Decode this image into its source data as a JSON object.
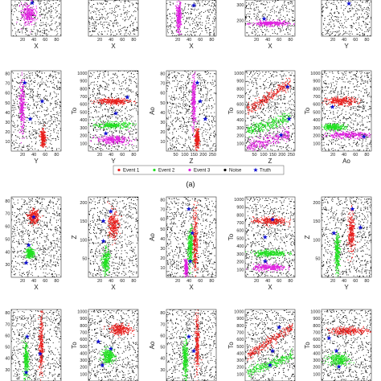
{
  "colors": {
    "event1": "#e8201e",
    "event2": "#20e020",
    "event3": "#e020e0",
    "noise": "#000000",
    "truth": "#1010d0"
  },
  "legend": {
    "items": [
      {
        "key": "event1",
        "label": "Event 1",
        "marker": "dot"
      },
      {
        "key": "event2",
        "label": "Event 2",
        "marker": "dot"
      },
      {
        "key": "event3",
        "label": "Event 3",
        "marker": "dot"
      },
      {
        "key": "noise",
        "label": "Noise",
        "marker": "dot"
      },
      {
        "key": "truth",
        "label": "Truth",
        "marker": "star"
      }
    ],
    "placement": "center"
  },
  "captions": [
    "(a)"
  ],
  "chart_data": [
    {
      "type": "scatter",
      "panel": "a-row1-1",
      "xlabel": "X",
      "ylabel": "",
      "xticks": [
        "20",
        "40",
        "60",
        "80"
      ],
      "yticks": [],
      "clusters": [
        {
          "series": "event3",
          "cx": 0.35,
          "cy": 0.6,
          "sx": 0.14,
          "sy": 0.28
        }
      ],
      "truth": [
        [
          0.42,
          0.92
        ]
      ]
    },
    {
      "type": "scatter",
      "panel": "a-row1-2",
      "xlabel": "X",
      "ylabel": "",
      "xticks": [
        "20",
        "40",
        "60",
        "80"
      ],
      "yticks": [],
      "clusters": [],
      "truth": []
    },
    {
      "type": "scatter",
      "panel": "a-row1-3",
      "xlabel": "X",
      "ylabel": "",
      "xticks": [
        "20",
        "40",
        "60",
        "80"
      ],
      "yticks": [],
      "clusters": [
        {
          "series": "event3",
          "cx": 0.25,
          "cy": 0.5,
          "sx": 0.05,
          "sy": 0.4
        }
      ],
      "truth": [
        [
          0.55,
          0.85
        ]
      ]
    },
    {
      "type": "scatter",
      "panel": "a-row1-4",
      "xlabel": "X",
      "ylabel": "",
      "xticks": [
        "20",
        "40",
        "60",
        "80"
      ],
      "yticks": [
        "200",
        "300"
      ],
      "clusters": [
        {
          "series": "event3",
          "cx": 0.5,
          "cy": 0.35,
          "sx": 0.35,
          "sy": 0.07
        }
      ],
      "truth": [
        [
          0.38,
          0.48
        ]
      ]
    },
    {
      "type": "scatter",
      "panel": "a-row1-5",
      "xlabel": "Y",
      "ylabel": "",
      "xticks": [
        "20",
        "40",
        "60",
        "80"
      ],
      "yticks": [],
      "clusters": [],
      "truth": [
        [
          0.55,
          0.9
        ]
      ]
    },
    {
      "type": "scatter",
      "panel": "a-row2-1",
      "xlabel": "Y",
      "ylabel": "Ao",
      "xticks": [
        "20",
        "40",
        "60",
        "80"
      ],
      "yticks": [
        "10",
        "20",
        "30",
        "40",
        "50",
        "60",
        "70",
        "80"
      ],
      "ylim": [
        0,
        80
      ],
      "clusters": [
        {
          "series": "event3",
          "cx": 0.22,
          "cy": 0.55,
          "sx": 0.05,
          "sy": 0.32
        },
        {
          "series": "event1",
          "cx": 0.64,
          "cy": 0.16,
          "sx": 0.05,
          "sy": 0.1
        }
      ],
      "truth": [
        [
          0.27,
          0.85
        ],
        [
          0.62,
          0.62
        ],
        [
          0.38,
          0.4
        ]
      ]
    },
    {
      "type": "scatter",
      "panel": "a-row2-2",
      "xlabel": "Y",
      "ylabel": "To",
      "xticks": [
        "20",
        "40",
        "60",
        "80"
      ],
      "yticks": [
        "100",
        "200",
        "300",
        "400",
        "500",
        "600",
        "700",
        "800",
        "900",
        "1000"
      ],
      "ylim": [
        0,
        1000
      ],
      "clusters": [
        {
          "series": "event1",
          "cx": 0.5,
          "cy": 0.62,
          "sx": 0.33,
          "sy": 0.04
        },
        {
          "series": "event2",
          "cx": 0.5,
          "cy": 0.32,
          "sx": 0.33,
          "sy": 0.04
        },
        {
          "series": "event3",
          "cx": 0.5,
          "cy": 0.14,
          "sx": 0.33,
          "sy": 0.05
        }
      ],
      "truth": [
        [
          0.78,
          0.67
        ],
        [
          0.55,
          0.47
        ],
        [
          0.35,
          0.22
        ]
      ]
    },
    {
      "type": "scatter",
      "panel": "a-row2-3",
      "xlabel": "Z",
      "ylabel": "Ao",
      "xticks": [
        "50",
        "100",
        "150",
        "200",
        "250"
      ],
      "yticks": [
        "10",
        "20",
        "30",
        "40",
        "50",
        "60",
        "70",
        "80"
      ],
      "ylim": [
        0,
        80
      ],
      "clusters": [
        {
          "series": "event3",
          "cx": 0.55,
          "cy": 0.6,
          "sx": 0.04,
          "sy": 0.35
        },
        {
          "series": "event1",
          "cx": 0.62,
          "cy": 0.15,
          "sx": 0.04,
          "sy": 0.12
        }
      ],
      "truth": [
        [
          0.62,
          0.85
        ],
        [
          0.68,
          0.62
        ],
        [
          0.78,
          0.4
        ]
      ]
    },
    {
      "type": "scatter",
      "panel": "a-row2-4",
      "xlabel": "Z",
      "ylabel": "To",
      "xticks": [
        "50",
        "100",
        "150",
        "200",
        "250"
      ],
      "yticks": [
        "100",
        "200",
        "300",
        "400",
        "500",
        "600",
        "700",
        "800",
        "900",
        "1000"
      ],
      "ylim": [
        0,
        1000
      ],
      "clusters": [
        {
          "series": "event1",
          "line": [
            [
              0.05,
              0.5
            ],
            [
              0.9,
              0.85
            ]
          ],
          "s": 0.035
        },
        {
          "series": "event2",
          "line": [
            [
              0.05,
              0.25
            ],
            [
              0.9,
              0.42
            ]
          ],
          "s": 0.035
        },
        {
          "series": "event3",
          "line": [
            [
              0.05,
              0.05
            ],
            [
              0.9,
              0.22
            ]
          ],
          "s": 0.035
        }
      ],
      "truth": [
        [
          0.85,
          0.8
        ],
        [
          0.88,
          0.4
        ],
        [
          0.72,
          0.2
        ]
      ]
    },
    {
      "type": "scatter",
      "panel": "a-row2-5",
      "xlabel": "Ao",
      "ylabel": "To",
      "xticks": [
        "20",
        "40",
        "60",
        "80"
      ],
      "yticks": [
        "100",
        "200",
        "300",
        "400",
        "500",
        "600",
        "700",
        "800",
        "900",
        "1000"
      ],
      "ylim": [
        0,
        1000
      ],
      "clusters": [
        {
          "series": "event1",
          "cx": 0.4,
          "cy": 0.62,
          "sx": 0.3,
          "sy": 0.05
        },
        {
          "series": "event2",
          "cx": 0.25,
          "cy": 0.3,
          "sx": 0.22,
          "sy": 0.04
        },
        {
          "series": "event3",
          "cx": 0.5,
          "cy": 0.2,
          "sx": 0.45,
          "sy": 0.04
        }
      ],
      "truth": [
        [
          0.22,
          0.55
        ],
        [
          0.85,
          0.18
        ]
      ]
    },
    {
      "type": "scatter",
      "panel": "b-row1-1",
      "xlabel": "X",
      "ylabel": "Y",
      "xticks": [
        "20",
        "40",
        "60",
        "80"
      ],
      "yticks": [
        "30",
        "40",
        "50",
        "60",
        "70",
        "80"
      ],
      "ylim": [
        25,
        80
      ],
      "clusters": [
        {
          "series": "event1",
          "cx": 0.45,
          "cy": 0.75,
          "sx": 0.1,
          "sy": 0.08
        },
        {
          "series": "event2",
          "cx": 0.38,
          "cy": 0.3,
          "sx": 0.08,
          "sy": 0.06
        }
      ],
      "truth": [
        [
          0.45,
          0.75
        ],
        [
          0.35,
          0.4
        ],
        [
          0.3,
          0.18
        ]
      ]
    },
    {
      "type": "scatter",
      "panel": "b-row1-2",
      "xlabel": "X",
      "ylabel": "Z",
      "xticks": [
        "20",
        "40",
        "60",
        "80"
      ],
      "yticks": [
        "50",
        "100",
        "150",
        "200"
      ],
      "ylim": [
        0,
        250
      ],
      "clusters": [
        {
          "series": "event1",
          "cx": 0.5,
          "cy": 0.65,
          "sx": 0.1,
          "sy": 0.18
        },
        {
          "series": "event2",
          "cx": 0.35,
          "cy": 0.2,
          "sx": 0.07,
          "sy": 0.15
        }
      ],
      "truth": [
        [
          0.3,
          0.7
        ],
        [
          0.45,
          0.82
        ],
        [
          0.3,
          0.45
        ]
      ]
    },
    {
      "type": "scatter",
      "panel": "b-row1-3",
      "xlabel": "X",
      "ylabel": "Ao",
      "xticks": [
        "20",
        "40",
        "60",
        "80"
      ],
      "yticks": [
        "10",
        "20",
        "30",
        "40",
        "50",
        "60",
        "70",
        "80"
      ],
      "ylim": [
        0,
        80
      ],
      "clusters": [
        {
          "series": "event1",
          "cx": 0.58,
          "cy": 0.45,
          "sx": 0.05,
          "sy": 0.4
        },
        {
          "series": "event2",
          "cx": 0.48,
          "cy": 0.35,
          "sx": 0.05,
          "sy": 0.25
        },
        {
          "series": "event3",
          "cx": 0.4,
          "cy": 0.12,
          "sx": 0.03,
          "sy": 0.1
        }
      ],
      "truth": [
        [
          0.45,
          0.85
        ],
        [
          0.52,
          0.55
        ],
        [
          0.48,
          0.2
        ]
      ]
    },
    {
      "type": "scatter",
      "panel": "b-row1-4",
      "xlabel": "X",
      "ylabel": "To",
      "xticks": [
        "20",
        "40",
        "60",
        "80"
      ],
      "yticks": [
        "100",
        "200",
        "300",
        "400",
        "500",
        "600",
        "700",
        "800",
        "900",
        "1000"
      ],
      "ylim": [
        0,
        1000
      ],
      "clusters": [
        {
          "series": "event1",
          "cx": 0.5,
          "cy": 0.7,
          "sx": 0.33,
          "sy": 0.05
        },
        {
          "series": "event2",
          "cx": 0.5,
          "cy": 0.3,
          "sx": 0.33,
          "sy": 0.04
        },
        {
          "series": "event3",
          "cx": 0.5,
          "cy": 0.12,
          "sx": 0.33,
          "sy": 0.04
        }
      ],
      "truth": [
        [
          0.55,
          0.72
        ],
        [
          0.4,
          0.5
        ],
        [
          0.4,
          0.2
        ]
      ]
    },
    {
      "type": "scatter",
      "panel": "b-row1-5",
      "xlabel": "Y",
      "ylabel": "Z",
      "xticks": [
        "20",
        "40",
        "60",
        "80"
      ],
      "yticks": [
        "50",
        "100",
        "150",
        "200"
      ],
      "ylim": [
        0,
        250
      ],
      "clusters": [
        {
          "series": "event1",
          "cx": 0.6,
          "cy": 0.55,
          "sx": 0.06,
          "sy": 0.25
        },
        {
          "series": "event2",
          "cx": 0.32,
          "cy": 0.3,
          "sx": 0.05,
          "sy": 0.22
        }
      ],
      "truth": [
        [
          0.62,
          0.85
        ],
        [
          0.78,
          0.62
        ],
        [
          0.25,
          0.55
        ]
      ]
    },
    {
      "type": "scatter",
      "panel": "b-row2-1",
      "xlabel": "",
      "ylabel": "Ao",
      "xticks": [],
      "yticks": [
        "30",
        "40",
        "50",
        "60",
        "70",
        "80"
      ],
      "ylim": [
        25,
        80
      ],
      "clusters": [
        {
          "series": "event1",
          "cx": 0.6,
          "cy": 0.5,
          "sx": 0.04,
          "sy": 0.45
        },
        {
          "series": "event2",
          "cx": 0.3,
          "cy": 0.3,
          "sx": 0.05,
          "sy": 0.25
        }
      ],
      "truth": [
        [
          0.32,
          0.62
        ],
        [
          0.58,
          0.38
        ],
        [
          0.3,
          0.12
        ]
      ]
    },
    {
      "type": "scatter",
      "panel": "b-row2-2",
      "xlabel": "",
      "ylabel": "To",
      "xticks": [],
      "yticks": [
        "100",
        "200",
        "300",
        "400",
        "500",
        "600",
        "700",
        "800",
        "900",
        "1000"
      ],
      "ylim": [
        0,
        1000
      ],
      "clusters": [
        {
          "series": "event1",
          "cx": 0.65,
          "cy": 0.72,
          "sx": 0.22,
          "sy": 0.07
        },
        {
          "series": "event2",
          "cx": 0.4,
          "cy": 0.35,
          "sx": 0.12,
          "sy": 0.1
        }
      ],
      "truth": [
        [
          0.2,
          0.55
        ],
        [
          0.45,
          0.45
        ],
        [
          0.28,
          0.22
        ]
      ]
    },
    {
      "type": "scatter",
      "panel": "b-row2-3",
      "xlabel": "",
      "ylabel": "Ao",
      "xticks": [],
      "yticks": [
        "30",
        "40",
        "50",
        "60",
        "70",
        "80"
      ],
      "ylim": [
        25,
        80
      ],
      "clusters": [
        {
          "series": "event1",
          "cx": 0.62,
          "cy": 0.5,
          "sx": 0.04,
          "sy": 0.45
        },
        {
          "series": "event2",
          "cx": 0.38,
          "cy": 0.3,
          "sx": 0.05,
          "sy": 0.25
        }
      ],
      "truth": [
        [
          0.45,
          0.62
        ],
        [
          0.55,
          0.42
        ]
      ]
    },
    {
      "type": "scatter",
      "panel": "b-row2-4",
      "xlabel": "",
      "ylabel": "To",
      "xticks": [],
      "yticks": [
        "100",
        "200",
        "300",
        "400",
        "500",
        "600",
        "700",
        "800",
        "900",
        "1000"
      ],
      "ylim": [
        0,
        1000
      ],
      "clusters": [
        {
          "series": "event1",
          "line": [
            [
              0.05,
              0.35
            ],
            [
              0.95,
              0.75
            ]
          ],
          "s": 0.035
        },
        {
          "series": "event2",
          "line": [
            [
              0.05,
              0.12
            ],
            [
              0.95,
              0.35
            ]
          ],
          "s": 0.035
        }
      ],
      "truth": [
        [
          0.68,
          0.75
        ],
        [
          0.55,
          0.42
        ],
        [
          0.5,
          0.22
        ]
      ]
    },
    {
      "type": "scatter",
      "panel": "b-row2-5",
      "xlabel": "",
      "ylabel": "To",
      "xticks": [],
      "yticks": [
        "100",
        "200",
        "300",
        "400",
        "500",
        "600",
        "700",
        "800",
        "900",
        "1000"
      ],
      "ylim": [
        0,
        1000
      ],
      "clusters": [
        {
          "series": "event1",
          "cx": 0.55,
          "cy": 0.7,
          "sx": 0.4,
          "sy": 0.05
        },
        {
          "series": "event2",
          "cx": 0.35,
          "cy": 0.3,
          "sx": 0.22,
          "sy": 0.08
        }
      ],
      "truth": [
        [
          0.15,
          0.6
        ],
        [
          0.3,
          0.42
        ],
        [
          0.35,
          0.2
        ]
      ]
    }
  ]
}
